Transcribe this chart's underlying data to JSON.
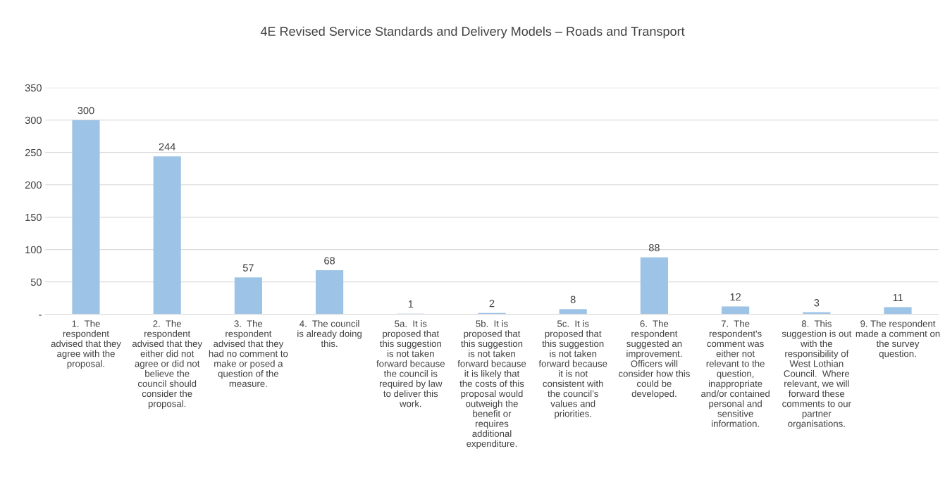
{
  "chart_data": {
    "type": "bar",
    "title": "4E Revised Service Standards and Delivery Models – Roads and Transport",
    "categories": [
      "1.  The respondent advised that they agree with the proposal.",
      "2.  The respondent advised that they either did not agree or did not believe the council should consider the proposal.",
      "3.  The respondent advised that they had no comment to make or posed a question of the measure.",
      "4.  The council is already doing this.",
      "5a.  It is proposed that this suggestion is not taken forward because the council is required by law to deliver this work.",
      "5b.  It is proposed that this suggestion is not taken forward because it is likely that the costs of this proposal would outweigh the benefit or requires additional expenditure.",
      "5c.  It is proposed that this suggestion is not taken forward because it is not consistent with the council’s values and priorities.",
      "6.  The respondent suggested an improvement. Officers will consider how this could be developed.",
      "7.  The respondent's comment was either not relevant to the question, inappropriate and/or contained personal and sensitive information.",
      "8.  This suggestion is out with the responsibility of West Lothian Council.  Where relevant, we will forward these comments to our partner organisations.",
      "9. The respondent made a comment on the survey question."
    ],
    "values": [
      300,
      244,
      57,
      68,
      1,
      2,
      8,
      88,
      12,
      3,
      11
    ],
    "color": "#9dc3e6",
    "ylim": [
      0,
      350
    ],
    "yticks": [
      {
        "value": 0,
        "label": "-"
      },
      50,
      100,
      150,
      200,
      250,
      300,
      350
    ],
    "grid": "y",
    "data_labels": true
  }
}
